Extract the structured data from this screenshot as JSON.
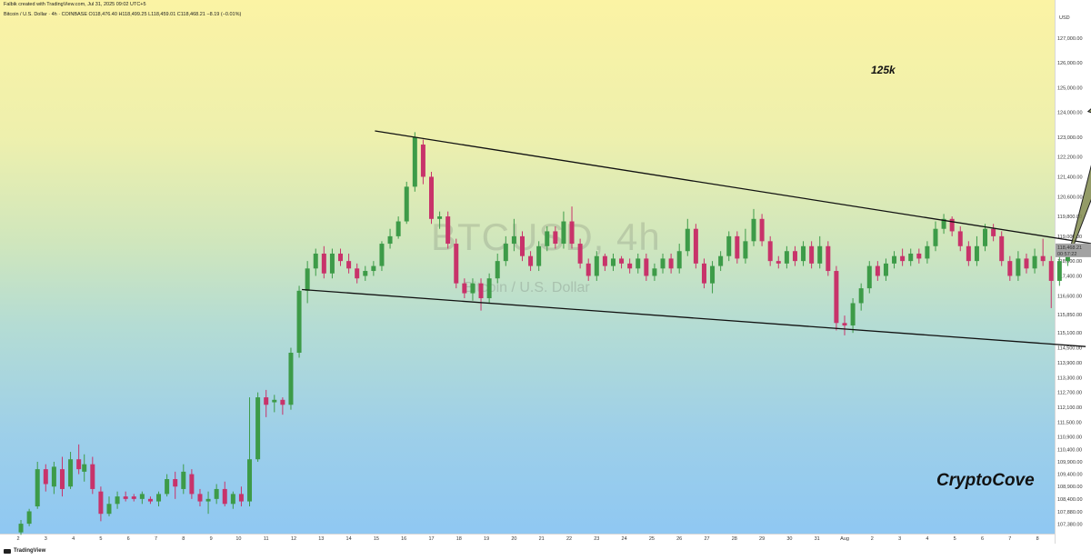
{
  "header": {
    "author_line": "Falbik created with TradingView.com, Jul 31, 2025 09:02 UTC+5",
    "symbol_line": "Bitcoin / U.S. Dollar · 4h · COINBASE",
    "ohlc_line": "O118,476.40  H118,499.25  L118,459.01  C118,468.21  −8.19 (−0.01%)"
  },
  "watermark": {
    "symbol": "BTCUSD, 4h",
    "description": "Bitcoin / U.S. Dollar"
  },
  "annotations": {
    "target": "125k",
    "brand": "CryptoCove"
  },
  "footer": {
    "logo_text": "TradingView"
  },
  "price_axis": {
    "currency": "USD",
    "current_price": "118,468.21",
    "countdown": "00:57:22"
  },
  "colors": {
    "up": "#3d9b48",
    "down": "#c8336a",
    "line": "#111111",
    "arrow_fill": "#808a4c",
    "price_tag": "#a2a2a2"
  },
  "chart_data": {
    "type": "candlestick",
    "title": "",
    "ylim": [
      107000,
      127800
    ],
    "y_ticks": [
      107380,
      107880,
      108400,
      108900,
      109400,
      109900,
      110400,
      110900,
      111500,
      112100,
      112700,
      113300,
      113900,
      114500,
      115100,
      115850,
      116600,
      117400,
      118000,
      118600,
      119000,
      119800,
      120600,
      121400,
      122200,
      123000,
      124000,
      125000,
      126000,
      127000
    ],
    "x_ticks": [
      {
        "label": "2",
        "x": 0.6
      },
      {
        "label": "3",
        "x": 1.6
      },
      {
        "label": "4",
        "x": 2.6
      },
      {
        "label": "5",
        "x": 3.6
      },
      {
        "label": "6",
        "x": 4.6
      },
      {
        "label": "7",
        "x": 5.6
      },
      {
        "label": "8",
        "x": 6.6
      },
      {
        "label": "9",
        "x": 7.6
      },
      {
        "label": "10",
        "x": 8.6
      },
      {
        "label": "11",
        "x": 9.6
      },
      {
        "label": "12",
        "x": 10.6
      },
      {
        "label": "13",
        "x": 11.6
      },
      {
        "label": "14",
        "x": 12.6
      },
      {
        "label": "15",
        "x": 13.6
      },
      {
        "label": "16",
        "x": 14.6
      },
      {
        "label": "17",
        "x": 15.6
      },
      {
        "label": "18",
        "x": 16.6
      },
      {
        "label": "19",
        "x": 17.6
      },
      {
        "label": "20",
        "x": 18.6
      },
      {
        "label": "21",
        "x": 19.6
      },
      {
        "label": "22",
        "x": 20.6
      },
      {
        "label": "23",
        "x": 21.6
      },
      {
        "label": "24",
        "x": 22.6
      },
      {
        "label": "25",
        "x": 23.6
      },
      {
        "label": "26",
        "x": 24.6
      },
      {
        "label": "27",
        "x": 25.6
      },
      {
        "label": "28",
        "x": 26.6
      },
      {
        "label": "29",
        "x": 27.6
      },
      {
        "label": "30",
        "x": 28.6
      },
      {
        "label": "31",
        "x": 29.6
      },
      {
        "label": "Aug",
        "x": 30.6
      },
      {
        "label": "2",
        "x": 31.6
      },
      {
        "label": "3",
        "x": 32.6
      },
      {
        "label": "4",
        "x": 33.6
      },
      {
        "label": "5",
        "x": 34.6
      },
      {
        "label": "6",
        "x": 35.6
      },
      {
        "label": "7",
        "x": 36.6
      },
      {
        "label": "8",
        "x": 37.6
      }
    ],
    "x_unit": "days",
    "candles": [
      [
        0.7,
        107050,
        107400,
        106950,
        107550
      ],
      [
        1.0,
        107400,
        107900,
        107300,
        108000
      ],
      [
        1.3,
        108100,
        109600,
        108000,
        109900
      ],
      [
        1.6,
        109600,
        109000,
        108700,
        109800
      ],
      [
        1.9,
        108900,
        109700,
        108600,
        109900
      ],
      [
        2.2,
        109600,
        108800,
        108500,
        110100
      ],
      [
        2.5,
        108900,
        110000,
        108800,
        110300
      ],
      [
        2.8,
        110000,
        109600,
        109400,
        110600
      ],
      [
        3.0,
        109500,
        109800,
        109100,
        110200
      ],
      [
        3.3,
        109800,
        108800,
        108600,
        110100
      ],
      [
        3.6,
        108700,
        107800,
        107500,
        108900
      ],
      [
        3.9,
        107800,
        108200,
        107700,
        108500
      ],
      [
        4.2,
        108200,
        108500,
        108000,
        108700
      ],
      [
        4.5,
        108500,
        108400,
        108300,
        108700
      ],
      [
        4.8,
        108500,
        108400,
        108300,
        108600
      ],
      [
        5.1,
        108400,
        108600,
        108200,
        108700
      ],
      [
        5.4,
        108400,
        108300,
        108200,
        108500
      ],
      [
        5.7,
        108300,
        108600,
        108100,
        108700
      ],
      [
        6.0,
        108600,
        109200,
        108500,
        109400
      ],
      [
        6.3,
        109200,
        108900,
        108400,
        109500
      ],
      [
        6.6,
        108800,
        109500,
        108600,
        109800
      ],
      [
        6.9,
        109400,
        108600,
        108400,
        109600
      ],
      [
        7.2,
        108600,
        108300,
        108100,
        108800
      ],
      [
        7.5,
        108300,
        108400,
        107800,
        108700
      ],
      [
        7.8,
        108400,
        108800,
        108200,
        109000
      ],
      [
        8.1,
        108800,
        108200,
        108100,
        109100
      ],
      [
        8.4,
        108200,
        108600,
        108000,
        108700
      ],
      [
        8.7,
        108600,
        108300,
        108100,
        108900
      ],
      [
        9.0,
        108300,
        110000,
        108100,
        112500
      ],
      [
        9.3,
        110000,
        112500,
        109900,
        112700
      ],
      [
        9.6,
        112500,
        112200,
        111700,
        112800
      ],
      [
        9.9,
        112300,
        112400,
        111900,
        112600
      ],
      [
        10.2,
        112400,
        112200,
        111800,
        112500
      ],
      [
        10.5,
        112200,
        114300,
        112000,
        114500
      ],
      [
        10.8,
        114300,
        116800,
        114100,
        117000
      ],
      [
        11.1,
        116800,
        117700,
        116300,
        118000
      ],
      [
        11.4,
        117700,
        118300,
        117400,
        118500
      ],
      [
        11.7,
        118300,
        117500,
        117300,
        118600
      ],
      [
        12.0,
        117500,
        118300,
        117300,
        118500
      ],
      [
        12.3,
        118300,
        118000,
        117800,
        118500
      ],
      [
        12.6,
        118000,
        117700,
        117500,
        118300
      ],
      [
        12.9,
        117700,
        117300,
        117100,
        117900
      ],
      [
        13.2,
        117400,
        117600,
        117200,
        117800
      ],
      [
        13.5,
        117600,
        117800,
        117400,
        118000
      ],
      [
        13.8,
        117800,
        118700,
        117600,
        118800
      ],
      [
        14.1,
        118700,
        119000,
        118500,
        119300
      ],
      [
        14.4,
        119000,
        119600,
        118900,
        119800
      ],
      [
        14.7,
        119600,
        121000,
        119500,
        121200
      ],
      [
        15.0,
        121000,
        123000,
        120800,
        123200
      ],
      [
        15.3,
        122700,
        121400,
        121100,
        122900
      ],
      [
        15.6,
        121400,
        119700,
        119500,
        121600
      ],
      [
        15.9,
        119700,
        119800,
        119300,
        120000
      ],
      [
        16.2,
        119800,
        118700,
        118500,
        120000
      ],
      [
        16.5,
        118700,
        117100,
        116900,
        118900
      ],
      [
        16.8,
        117100,
        116700,
        116500,
        117300
      ],
      [
        17.1,
        116700,
        117100,
        116400,
        117300
      ],
      [
        17.4,
        117100,
        116500,
        116000,
        117300
      ],
      [
        17.7,
        116500,
        117300,
        116300,
        117500
      ],
      [
        18.0,
        117300,
        118000,
        117100,
        118300
      ],
      [
        18.3,
        118000,
        118700,
        117800,
        119000
      ],
      [
        18.6,
        118700,
        119000,
        118400,
        119700
      ],
      [
        18.9,
        119000,
        118200,
        118000,
        119200
      ],
      [
        19.2,
        118200,
        117800,
        117600,
        118400
      ],
      [
        19.5,
        117800,
        118600,
        117600,
        118800
      ],
      [
        19.8,
        118600,
        119200,
        118400,
        119400
      ],
      [
        20.1,
        119200,
        118700,
        118500,
        119400
      ],
      [
        20.4,
        118700,
        119600,
        118500,
        120000
      ],
      [
        20.7,
        119600,
        118700,
        118500,
        120200
      ],
      [
        21.0,
        118700,
        117900,
        117700,
        118900
      ],
      [
        21.3,
        117900,
        117400,
        117200,
        118100
      ],
      [
        21.6,
        117400,
        118200,
        117200,
        118400
      ],
      [
        21.9,
        118200,
        117800,
        117600,
        118300
      ],
      [
        22.2,
        117800,
        118100,
        117600,
        118300
      ],
      [
        22.5,
        118100,
        117900,
        117700,
        118200
      ],
      [
        22.8,
        117900,
        117700,
        117500,
        118100
      ],
      [
        23.1,
        117700,
        118100,
        117500,
        118300
      ],
      [
        23.4,
        118100,
        117400,
        117200,
        118300
      ],
      [
        23.7,
        117400,
        117700,
        117200,
        117900
      ],
      [
        24.0,
        117700,
        118100,
        117500,
        118300
      ],
      [
        24.3,
        118100,
        117700,
        117500,
        118300
      ],
      [
        24.6,
        117700,
        118400,
        117500,
        118700
      ],
      [
        24.9,
        118400,
        119300,
        118200,
        119700
      ],
      [
        25.2,
        119300,
        117900,
        117700,
        119500
      ],
      [
        25.5,
        117900,
        117100,
        116900,
        118100
      ],
      [
        25.8,
        117100,
        117800,
        116700,
        118000
      ],
      [
        26.1,
        117800,
        118200,
        117600,
        118400
      ],
      [
        26.4,
        118200,
        119000,
        118000,
        119200
      ],
      [
        26.7,
        119000,
        118100,
        117900,
        119200
      ],
      [
        27.0,
        118100,
        118800,
        117900,
        119300
      ],
      [
        27.3,
        118800,
        119700,
        118600,
        120100
      ],
      [
        27.6,
        119700,
        118800,
        118600,
        119900
      ],
      [
        27.9,
        118800,
        118000,
        117800,
        119000
      ],
      [
        28.2,
        118000,
        117900,
        117700,
        118200
      ],
      [
        28.5,
        117900,
        118400,
        117700,
        118600
      ],
      [
        28.8,
        118400,
        118000,
        117800,
        118600
      ],
      [
        29.1,
        118000,
        118600,
        117800,
        118800
      ],
      [
        29.4,
        118600,
        117900,
        117700,
        118800
      ],
      [
        29.7,
        117900,
        118600,
        117700,
        119000
      ],
      [
        30.0,
        118600,
        117600,
        117400,
        118800
      ],
      [
        30.3,
        117600,
        115500,
        115200,
        117800
      ],
      [
        30.6,
        115500,
        115400,
        115000,
        115800
      ],
      [
        30.9,
        115400,
        116300,
        115100,
        116500
      ],
      [
        31.2,
        116300,
        116900,
        116000,
        117100
      ],
      [
        31.5,
        116900,
        117800,
        116700,
        118000
      ],
      [
        31.8,
        117800,
        117400,
        117200,
        118000
      ],
      [
        32.1,
        117400,
        117900,
        117200,
        118100
      ],
      [
        32.4,
        117900,
        118200,
        117700,
        118400
      ],
      [
        32.7,
        118200,
        118000,
        117800,
        118500
      ],
      [
        33.0,
        118000,
        118300,
        117800,
        118500
      ],
      [
        33.3,
        118300,
        118100,
        117900,
        118500
      ],
      [
        33.6,
        118100,
        118600,
        117900,
        118800
      ],
      [
        33.9,
        118600,
        119300,
        118400,
        119600
      ],
      [
        34.2,
        119300,
        119700,
        119100,
        119900
      ],
      [
        34.5,
        119700,
        119200,
        119000,
        119800
      ],
      [
        34.8,
        119200,
        118600,
        118400,
        119400
      ],
      [
        35.1,
        118600,
        118000,
        117800,
        118800
      ],
      [
        35.4,
        118000,
        118600,
        117800,
        119000
      ],
      [
        35.7,
        118600,
        119300,
        118400,
        119500
      ],
      [
        36.0,
        119300,
        119000,
        118800,
        119500
      ],
      [
        36.3,
        119000,
        118000,
        117800,
        119200
      ],
      [
        36.6,
        118000,
        117400,
        117200,
        118200
      ],
      [
        36.9,
        117400,
        118100,
        117200,
        118400
      ],
      [
        37.2,
        118100,
        117700,
        117500,
        118300
      ],
      [
        37.5,
        117700,
        118200,
        117500,
        118500
      ],
      [
        37.8,
        118200,
        118000,
        117800,
        118900
      ],
      [
        38.1,
        118000,
        117200,
        116100,
        118200
      ],
      [
        38.4,
        117200,
        118000,
        117000,
        118300
      ],
      [
        38.7,
        118000,
        118450,
        117800,
        118600
      ]
    ],
    "trendlines": [
      {
        "name": "upper",
        "from": [
          13.55,
          123250
        ],
        "to": [
          40.15,
          118600
        ]
      },
      {
        "name": "lower",
        "from": [
          10.9,
          116850
        ],
        "to": [
          39.35,
          114550
        ]
      }
    ],
    "projection": {
      "from": [
        38.8,
        118400
      ],
      "to": [
        40.8,
        125400
      ],
      "label": "125k"
    }
  }
}
